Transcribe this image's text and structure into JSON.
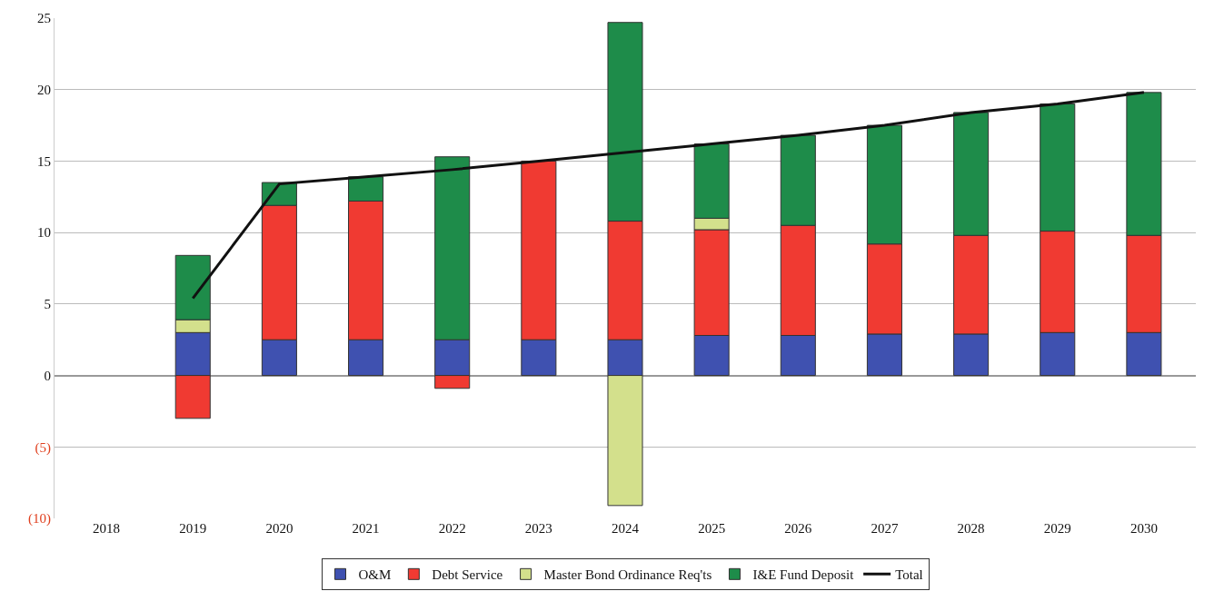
{
  "chart_data": {
    "type": "bar",
    "stacked": true,
    "categories": [
      "2018",
      "2019",
      "2020",
      "2021",
      "2022",
      "2023",
      "2024",
      "2025",
      "2026",
      "2027",
      "2028",
      "2029",
      "2030"
    ],
    "series": [
      {
        "name": "O&M",
        "color": "#3f51b0",
        "values": [
          null,
          3.0,
          2.5,
          2.5,
          2.5,
          2.5,
          2.5,
          2.8,
          2.8,
          2.9,
          2.9,
          3.0,
          3.0
        ]
      },
      {
        "name": "Debt Service",
        "color": "#f03a32",
        "values": [
          null,
          -3.0,
          9.4,
          9.7,
          -0.9,
          12.5,
          8.3,
          7.4,
          7.7,
          6.3,
          6.9,
          7.1,
          6.8
        ]
      },
      {
        "name": "Master Bond Ordinance Req'ts",
        "color": "#d3e08c",
        "values": [
          null,
          0.9,
          null,
          null,
          null,
          null,
          -9.1,
          0.8,
          null,
          null,
          null,
          null,
          null
        ]
      },
      {
        "name": "I&E Fund Deposit",
        "color": "#1e8c4a",
        "values": [
          null,
          4.5,
          1.6,
          1.7,
          12.8,
          null,
          13.9,
          5.2,
          6.3,
          8.3,
          8.6,
          8.9,
          10.0
        ]
      },
      {
        "name": "Total",
        "type": "line",
        "color": "#111111",
        "values": [
          null,
          5.4,
          13.4,
          13.9,
          14.4,
          15.0,
          15.6,
          16.2,
          16.8,
          17.5,
          18.4,
          19.0,
          19.8
        ]
      }
    ],
    "ylim": [
      -10,
      25
    ],
    "yticks": [
      {
        "value": -10,
        "label": "(10)"
      },
      {
        "value": -5,
        "label": "(5)"
      },
      0,
      5,
      10,
      15,
      20,
      25
    ],
    "grid": "y",
    "legend": "bottom",
    "marker": "none",
    "line_style": "solid"
  }
}
